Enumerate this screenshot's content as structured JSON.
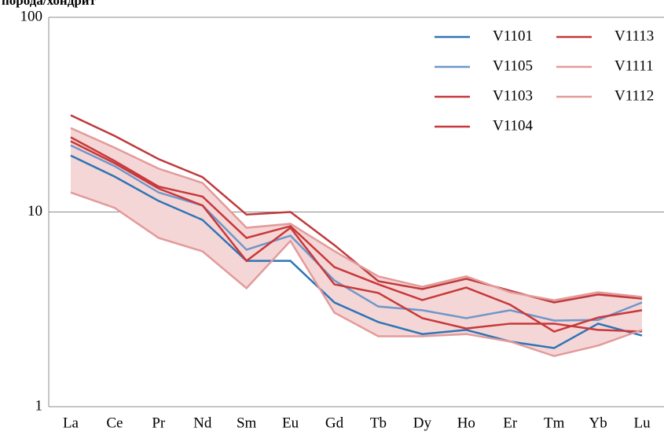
{
  "chart_data": {
    "type": "line",
    "y_label": "порода/хондрит",
    "categories": [
      "La",
      "Ce",
      "Pr",
      "Nd",
      "Sm",
      "Eu",
      "Gd",
      "Tb",
      "Dy",
      "Ho",
      "Er",
      "Tm",
      "Yb",
      "Lu"
    ],
    "ylim": [
      1,
      100
    ],
    "yticks": [
      1,
      10,
      100
    ],
    "log_y": true,
    "grid": true,
    "fill_between": [
      "V1111",
      "V1112"
    ],
    "fill_color": "#f5d6d6",
    "series": [
      {
        "name": "V1101",
        "color": "#2e75b6",
        "values": [
          19.5,
          15.2,
          11.4,
          9.1,
          5.61,
          5.61,
          3.43,
          2.72,
          2.36,
          2.48,
          2.16,
          2.0,
          2.67,
          2.32
        ]
      },
      {
        "name": "V1105",
        "color": "#6f97c9",
        "values": [
          22.0,
          17.2,
          12.6,
          10.8,
          6.4,
          7.56,
          4.45,
          3.27,
          3.13,
          2.85,
          3.13,
          2.77,
          2.79,
          3.43
        ]
      },
      {
        "name": "V1103",
        "color": "#c8383a",
        "values": [
          23.1,
          17.8,
          13.2,
          10.8,
          5.61,
          8.3,
          4.25,
          3.84,
          2.85,
          2.52,
          2.67,
          2.67,
          2.48,
          2.43
        ]
      },
      {
        "name": "V1104",
        "color": "#c8383a",
        "values": [
          24.2,
          18.3,
          13.5,
          12.0,
          7.36,
          8.46,
          5.21,
          4.25,
          3.53,
          4.09,
          3.34,
          2.43,
          2.87,
          3.13
        ]
      },
      {
        "name": "V1113",
        "color": "#c0393b",
        "values": [
          31.4,
          24.6,
          18.7,
          15.1,
          9.7,
          10.0,
          6.76,
          4.41,
          4.02,
          4.54,
          3.94,
          3.43,
          3.77,
          3.59
        ]
      },
      {
        "name": "V1111",
        "color": "#e39a9a",
        "values": [
          12.6,
          10.5,
          7.36,
          6.28,
          4.06,
          7.1,
          3.04,
          2.3,
          2.3,
          2.36,
          2.16,
          1.82,
          2.06,
          2.48
        ]
      },
      {
        "name": "V1112",
        "color": "#e39a9a",
        "values": [
          27.0,
          21.4,
          16.7,
          14.1,
          8.3,
          8.7,
          6.3,
          4.67,
          4.13,
          4.67,
          3.87,
          3.52,
          3.87,
          3.66
        ]
      }
    ]
  }
}
